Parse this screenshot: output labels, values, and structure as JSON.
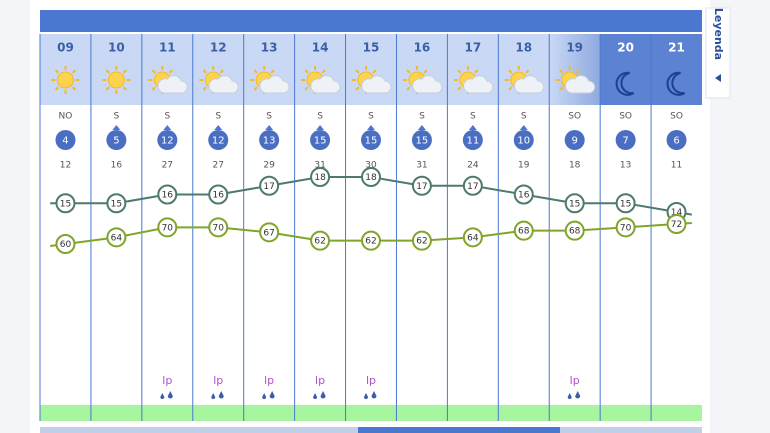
{
  "legend_tab": "Leyenda",
  "forecast": {
    "hours": [
      "09",
      "10",
      "11",
      "12",
      "13",
      "14",
      "15",
      "16",
      "17",
      "18",
      "19",
      "20",
      "21"
    ],
    "icons": [
      "sun",
      "sun",
      "partly-cloudy",
      "partly-cloudy",
      "partly-cloudy",
      "partly-cloudy",
      "partly-cloudy",
      "partly-cloudy",
      "partly-cloudy",
      "partly-cloudy",
      "partly-cloudy",
      "moon",
      "moon"
    ],
    "wind_direction": [
      "NO",
      "S",
      "S",
      "S",
      "S",
      "S",
      "S",
      "S",
      "S",
      "S",
      "SO",
      "SO",
      "SO"
    ],
    "wind_speed": [
      4,
      5,
      12,
      12,
      13,
      15,
      15,
      15,
      11,
      10,
      9,
      7,
      6
    ],
    "gust": [
      12,
      16,
      27,
      27,
      29,
      31,
      30,
      31,
      24,
      19,
      18,
      13,
      11
    ],
    "temperature": [
      15,
      15,
      16,
      16,
      17,
      18,
      18,
      17,
      17,
      16,
      15,
      15,
      14
    ],
    "humidity": [
      60,
      64,
      70,
      70,
      67,
      62,
      62,
      62,
      64,
      68,
      68,
      70,
      72
    ],
    "precipitation": [
      null,
      null,
      "lp",
      "lp",
      "lp",
      "lp",
      "lp",
      null,
      null,
      null,
      "lp",
      null,
      null
    ]
  }
}
